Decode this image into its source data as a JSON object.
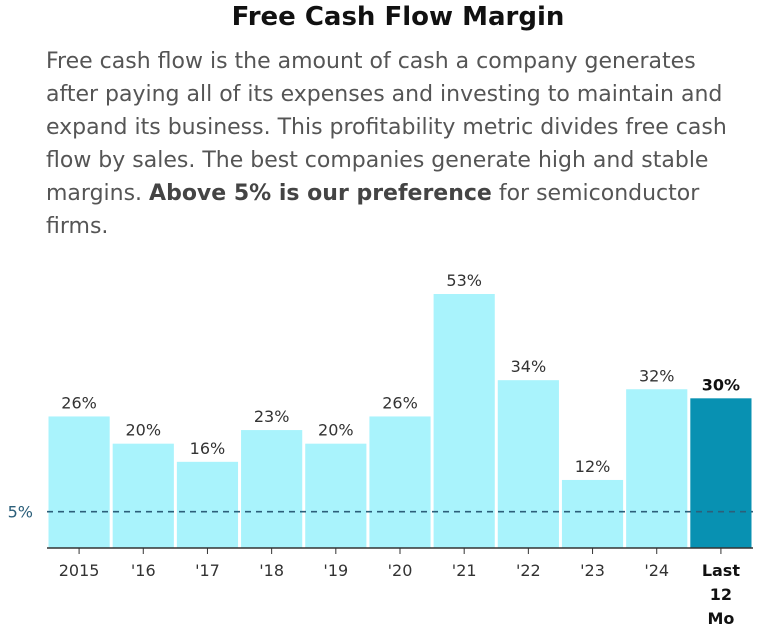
{
  "chart_data": {
    "type": "bar",
    "title": "Free Cash Flow Margin",
    "description_parts": [
      {
        "text": "Free cash flow is the amount of cash a company generates after paying all of its expenses and investing to maintain and expand its business. This profitability metric divides free cash flow by sales. The best companies generate high and stable margins. ",
        "bold": false
      },
      {
        "text": "Above 5% is our preference",
        "bold": true
      },
      {
        "text": " for semiconductor firms.",
        "bold": false
      }
    ],
    "categories": [
      "2015",
      "'16",
      "'17",
      "'18",
      "'19",
      "'20",
      "'21",
      "'22",
      "'23",
      "'24",
      "Last 12 Mo"
    ],
    "category_lines": [
      [
        "2015"
      ],
      [
        "'16"
      ],
      [
        "'17"
      ],
      [
        "'18"
      ],
      [
        "'19"
      ],
      [
        "'20"
      ],
      [
        "'21"
      ],
      [
        "'22"
      ],
      [
        "'23"
      ],
      [
        "'24"
      ],
      [
        "Last",
        "12",
        "Mo"
      ]
    ],
    "values": [
      26,
      20,
      16,
      23,
      20,
      26,
      53,
      34,
      12,
      32,
      30
    ],
    "value_labels": [
      "26%",
      "20%",
      "16%",
      "23%",
      "20%",
      "26%",
      "53%",
      "34%",
      "12%",
      "32%",
      "30%"
    ],
    "highlight_index": 10,
    "reference": {
      "value": 5,
      "label": "5%"
    },
    "ylim": [
      -3,
      53
    ],
    "xlabel": "",
    "ylabel": "",
    "colors": {
      "bar": "#a9f3fc",
      "highlight": "#0891b2",
      "reference": "#2c5f7a",
      "axis": "#333333"
    }
  }
}
